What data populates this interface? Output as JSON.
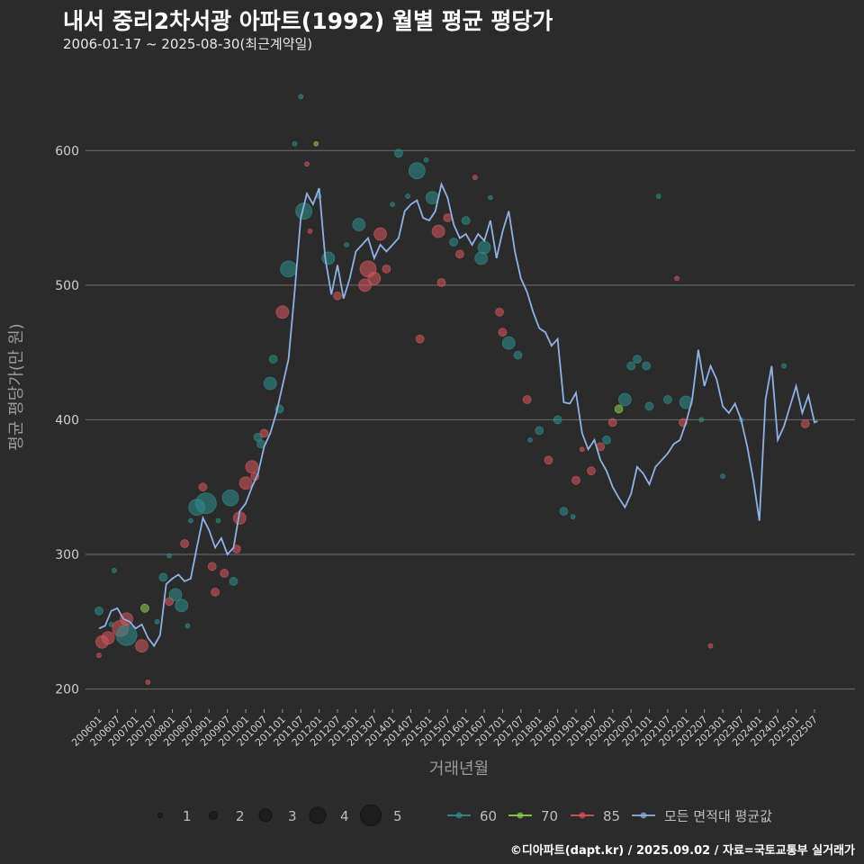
{
  "header": {
    "title": "내서 중리2차서광 아파트(1992) 월별 평균 평당가",
    "subtitle": "2006-01-17 ~ 2025-08-30(최근계약일)"
  },
  "caption": "©디아파트(dapt.kr) / 2025.09.02 / 자료=국토교통부 실거래가",
  "chart_data": {
    "type": "line",
    "xlabel": "거래년월",
    "ylabel": "평균 평당가(만 원)",
    "ylim": [
      185,
      655
    ],
    "yticks": [
      200,
      300,
      400,
      500,
      600
    ],
    "xticks": [
      "200601",
      "200607",
      "200701",
      "200707",
      "200801",
      "200807",
      "200901",
      "200907",
      "201001",
      "201007",
      "201101",
      "201107",
      "201201",
      "201207",
      "201301",
      "201307",
      "201401",
      "201407",
      "201501",
      "201507",
      "201601",
      "201607",
      "201701",
      "201707",
      "201801",
      "201807",
      "201901",
      "201907",
      "202001",
      "202007",
      "202101",
      "202107",
      "202201",
      "202207",
      "202301",
      "202307",
      "202401",
      "202407",
      "202501",
      "202507"
    ],
    "grid": true,
    "colors": {
      "60": "#2f8f8f",
      "70": "#8fd14f",
      "85": "#d9575d",
      "avg": "#8fb1e6",
      "size_swatch": "#1e1e1e"
    },
    "legend": {
      "position": "bottom",
      "size_entries": [
        1,
        2,
        3,
        4,
        5
      ],
      "color_entries": [
        {
          "key": "60",
          "label": "60"
        },
        {
          "key": "70",
          "label": "70"
        },
        {
          "key": "85",
          "label": "85"
        },
        {
          "key": "avg",
          "label": "모든 면적대 평균값"
        }
      ]
    },
    "avg_line": {
      "name": "모든 면적대 평균값",
      "points": [
        [
          "200601",
          245
        ],
        [
          "200603",
          247
        ],
        [
          "200605",
          258
        ],
        [
          "200607",
          260
        ],
        [
          "200609",
          252
        ],
        [
          "200611",
          250
        ],
        [
          "200701",
          245
        ],
        [
          "200703",
          248
        ],
        [
          "200705",
          238
        ],
        [
          "200707",
          232
        ],
        [
          "200709",
          240
        ],
        [
          "200711",
          278
        ],
        [
          "200801",
          282
        ],
        [
          "200803",
          285
        ],
        [
          "200805",
          280
        ],
        [
          "200807",
          282
        ],
        [
          "200809",
          305
        ],
        [
          "200811",
          327
        ],
        [
          "200901",
          318
        ],
        [
          "200903",
          305
        ],
        [
          "200905",
          312
        ],
        [
          "200907",
          300
        ],
        [
          "200909",
          305
        ],
        [
          "200911",
          332
        ],
        [
          "201001",
          338
        ],
        [
          "201003",
          350
        ],
        [
          "201005",
          360
        ],
        [
          "201007",
          380
        ],
        [
          "201009",
          390
        ],
        [
          "201011",
          405
        ],
        [
          "201101",
          425
        ],
        [
          "201103",
          445
        ],
        [
          "201105",
          495
        ],
        [
          "201107",
          550
        ],
        [
          "201109",
          568
        ],
        [
          "201111",
          560
        ],
        [
          "201201",
          572
        ],
        [
          "201203",
          520
        ],
        [
          "201205",
          493
        ],
        [
          "201207",
          515
        ],
        [
          "201209",
          490
        ],
        [
          "201211",
          505
        ],
        [
          "201301",
          525
        ],
        [
          "201303",
          530
        ],
        [
          "201305",
          535
        ],
        [
          "201307",
          520
        ],
        [
          "201309",
          530
        ],
        [
          "201311",
          525
        ],
        [
          "201401",
          530
        ],
        [
          "201403",
          535
        ],
        [
          "201405",
          555
        ],
        [
          "201407",
          560
        ],
        [
          "201409",
          563
        ],
        [
          "201411",
          550
        ],
        [
          "201501",
          548
        ],
        [
          "201503",
          555
        ],
        [
          "201505",
          575
        ],
        [
          "201507",
          565
        ],
        [
          "201509",
          545
        ],
        [
          "201511",
          535
        ],
        [
          "201601",
          538
        ],
        [
          "201603",
          530
        ],
        [
          "201605",
          538
        ],
        [
          "201607",
          533
        ],
        [
          "201609",
          548
        ],
        [
          "201611",
          520
        ],
        [
          "201701",
          540
        ],
        [
          "201703",
          555
        ],
        [
          "201705",
          525
        ],
        [
          "201707",
          505
        ],
        [
          "201709",
          495
        ],
        [
          "201711",
          480
        ],
        [
          "201801",
          468
        ],
        [
          "201803",
          465
        ],
        [
          "201805",
          455
        ],
        [
          "201807",
          460
        ],
        [
          "201809",
          413
        ],
        [
          "201811",
          412
        ],
        [
          "201901",
          420
        ],
        [
          "201903",
          390
        ],
        [
          "201905",
          378
        ],
        [
          "201907",
          385
        ],
        [
          "201909",
          370
        ],
        [
          "201911",
          362
        ],
        [
          "202001",
          350
        ],
        [
          "202003",
          342
        ],
        [
          "202005",
          335
        ],
        [
          "202007",
          345
        ],
        [
          "202009",
          365
        ],
        [
          "202011",
          360
        ],
        [
          "202101",
          352
        ],
        [
          "202103",
          365
        ],
        [
          "202105",
          370
        ],
        [
          "202107",
          375
        ],
        [
          "202109",
          382
        ],
        [
          "202111",
          385
        ],
        [
          "202201",
          398
        ],
        [
          "202203",
          415
        ],
        [
          "202205",
          452
        ],
        [
          "202207",
          425
        ],
        [
          "202209",
          440
        ],
        [
          "202211",
          430
        ],
        [
          "202301",
          410
        ],
        [
          "202303",
          405
        ],
        [
          "202305",
          412
        ],
        [
          "202307",
          400
        ],
        [
          "202309",
          380
        ],
        [
          "202311",
          355
        ],
        [
          "202401",
          325
        ],
        [
          "202403",
          415
        ],
        [
          "202405",
          440
        ],
        [
          "202407",
          385
        ],
        [
          "202409",
          395
        ],
        [
          "202411",
          410
        ],
        [
          "202501",
          425
        ],
        [
          "202503",
          405
        ],
        [
          "202505",
          418
        ],
        [
          "202507",
          398
        ],
        [
          "202508",
          399
        ]
      ]
    },
    "scatter": [
      [
        "200601",
        258,
        "60",
        2
      ],
      [
        "200601",
        225,
        "85",
        1
      ],
      [
        "200602",
        235,
        "85",
        3
      ],
      [
        "200604",
        238,
        "85",
        3
      ],
      [
        "200605",
        248,
        "60",
        1
      ],
      [
        "200606",
        288,
        "60",
        1
      ],
      [
        "200608",
        245,
        "85",
        4
      ],
      [
        "200610",
        240,
        "60",
        5
      ],
      [
        "200610",
        252,
        "85",
        3
      ],
      [
        "200703",
        232,
        "85",
        3
      ],
      [
        "200704",
        260,
        "70",
        2
      ],
      [
        "200705",
        205,
        "85",
        1
      ],
      [
        "200708",
        250,
        "60",
        1
      ],
      [
        "200710",
        283,
        "60",
        2
      ],
      [
        "200712",
        265,
        "85",
        2
      ],
      [
        "200712",
        299,
        "60",
        1
      ],
      [
        "200802",
        270,
        "60",
        3
      ],
      [
        "200804",
        262,
        "60",
        3
      ],
      [
        "200805",
        308,
        "85",
        2
      ],
      [
        "200806",
        247,
        "60",
        1
      ],
      [
        "200807",
        325,
        "60",
        1
      ],
      [
        "200809",
        335,
        "60",
        4
      ],
      [
        "200811",
        350,
        "85",
        2
      ],
      [
        "200812",
        338,
        "60",
        5
      ],
      [
        "200902",
        291,
        "85",
        2
      ],
      [
        "200903",
        272,
        "85",
        2
      ],
      [
        "200904",
        325,
        "60",
        1
      ],
      [
        "200906",
        286,
        "85",
        2
      ],
      [
        "200908",
        342,
        "60",
        4
      ],
      [
        "200909",
        280,
        "60",
        2
      ],
      [
        "200910",
        304,
        "85",
        2
      ],
      [
        "200911",
        327,
        "85",
        3
      ],
      [
        "201001",
        353,
        "85",
        3
      ],
      [
        "201003",
        365,
        "85",
        3
      ],
      [
        "201004",
        358,
        "85",
        2
      ],
      [
        "201005",
        387,
        "60",
        2
      ],
      [
        "201006",
        382,
        "60",
        2
      ],
      [
        "201007",
        390,
        "85",
        2
      ],
      [
        "201009",
        427,
        "60",
        3
      ],
      [
        "201010",
        445,
        "60",
        2
      ],
      [
        "201012",
        408,
        "60",
        2
      ],
      [
        "201101",
        480,
        "85",
        3
      ],
      [
        "201103",
        512,
        "60",
        4
      ],
      [
        "201105",
        605,
        "60",
        1
      ],
      [
        "201107",
        640,
        "60",
        1
      ],
      [
        "201108",
        555,
        "60",
        4
      ],
      [
        "201109",
        590,
        "85",
        1
      ],
      [
        "201110",
        540,
        "85",
        1
      ],
      [
        "201112",
        605,
        "70",
        1
      ],
      [
        "201201",
        566,
        "60",
        1
      ],
      [
        "201204",
        520,
        "60",
        3
      ],
      [
        "201207",
        492,
        "85",
        2
      ],
      [
        "201210",
        530,
        "60",
        1
      ],
      [
        "201302",
        545,
        "60",
        3
      ],
      [
        "201304",
        500,
        "85",
        3
      ],
      [
        "201305",
        512,
        "85",
        4
      ],
      [
        "201307",
        505,
        "85",
        3
      ],
      [
        "201309",
        538,
        "85",
        3
      ],
      [
        "201311",
        512,
        "85",
        2
      ],
      [
        "201401",
        560,
        "60",
        1
      ],
      [
        "201403",
        598,
        "60",
        2
      ],
      [
        "201406",
        566,
        "60",
        1
      ],
      [
        "201409",
        585,
        "60",
        4
      ],
      [
        "201410",
        460,
        "85",
        2
      ],
      [
        "201412",
        593,
        "60",
        1
      ],
      [
        "201502",
        565,
        "60",
        3
      ],
      [
        "201504",
        540,
        "85",
        3
      ],
      [
        "201505",
        502,
        "85",
        2
      ],
      [
        "201507",
        550,
        "85",
        2
      ],
      [
        "201509",
        532,
        "60",
        2
      ],
      [
        "201511",
        523,
        "85",
        2
      ],
      [
        "201601",
        548,
        "60",
        2
      ],
      [
        "201604",
        580,
        "85",
        1
      ],
      [
        "201606",
        520,
        "60",
        3
      ],
      [
        "201607",
        528,
        "60",
        3
      ],
      [
        "201609",
        565,
        "60",
        1
      ],
      [
        "201612",
        480,
        "85",
        2
      ],
      [
        "201701",
        465,
        "85",
        2
      ],
      [
        "201703",
        457,
        "60",
        3
      ],
      [
        "201706",
        448,
        "60",
        2
      ],
      [
        "201709",
        415,
        "85",
        2
      ],
      [
        "201710",
        385,
        "60",
        1
      ],
      [
        "201801",
        392,
        "60",
        2
      ],
      [
        "201804",
        370,
        "85",
        2
      ],
      [
        "201807",
        400,
        "60",
        2
      ],
      [
        "201809",
        332,
        "60",
        2
      ],
      [
        "201812",
        328,
        "60",
        1
      ],
      [
        "201901",
        355,
        "85",
        2
      ],
      [
        "201903",
        378,
        "85",
        1
      ],
      [
        "201906",
        362,
        "85",
        2
      ],
      [
        "201909",
        380,
        "85",
        2
      ],
      [
        "201911",
        385,
        "60",
        2
      ],
      [
        "202001",
        398,
        "85",
        2
      ],
      [
        "202003",
        408,
        "70",
        2
      ],
      [
        "202005",
        415,
        "60",
        3
      ],
      [
        "202007",
        440,
        "60",
        2
      ],
      [
        "202009",
        445,
        "60",
        2
      ],
      [
        "202012",
        440,
        "60",
        2
      ],
      [
        "202101",
        410,
        "60",
        2
      ],
      [
        "202104",
        566,
        "60",
        1
      ],
      [
        "202107",
        415,
        "60",
        2
      ],
      [
        "202110",
        505,
        "85",
        1
      ],
      [
        "202112",
        398,
        "85",
        2
      ],
      [
        "202201",
        413,
        "60",
        3
      ],
      [
        "202206",
        400,
        "60",
        1
      ],
      [
        "202209",
        232,
        "85",
        1
      ],
      [
        "202301",
        358,
        "60",
        1
      ],
      [
        "202307",
        400,
        "60",
        1
      ],
      [
        "202409",
        440,
        "60",
        1
      ],
      [
        "202504",
        397,
        "85",
        2
      ]
    ]
  }
}
